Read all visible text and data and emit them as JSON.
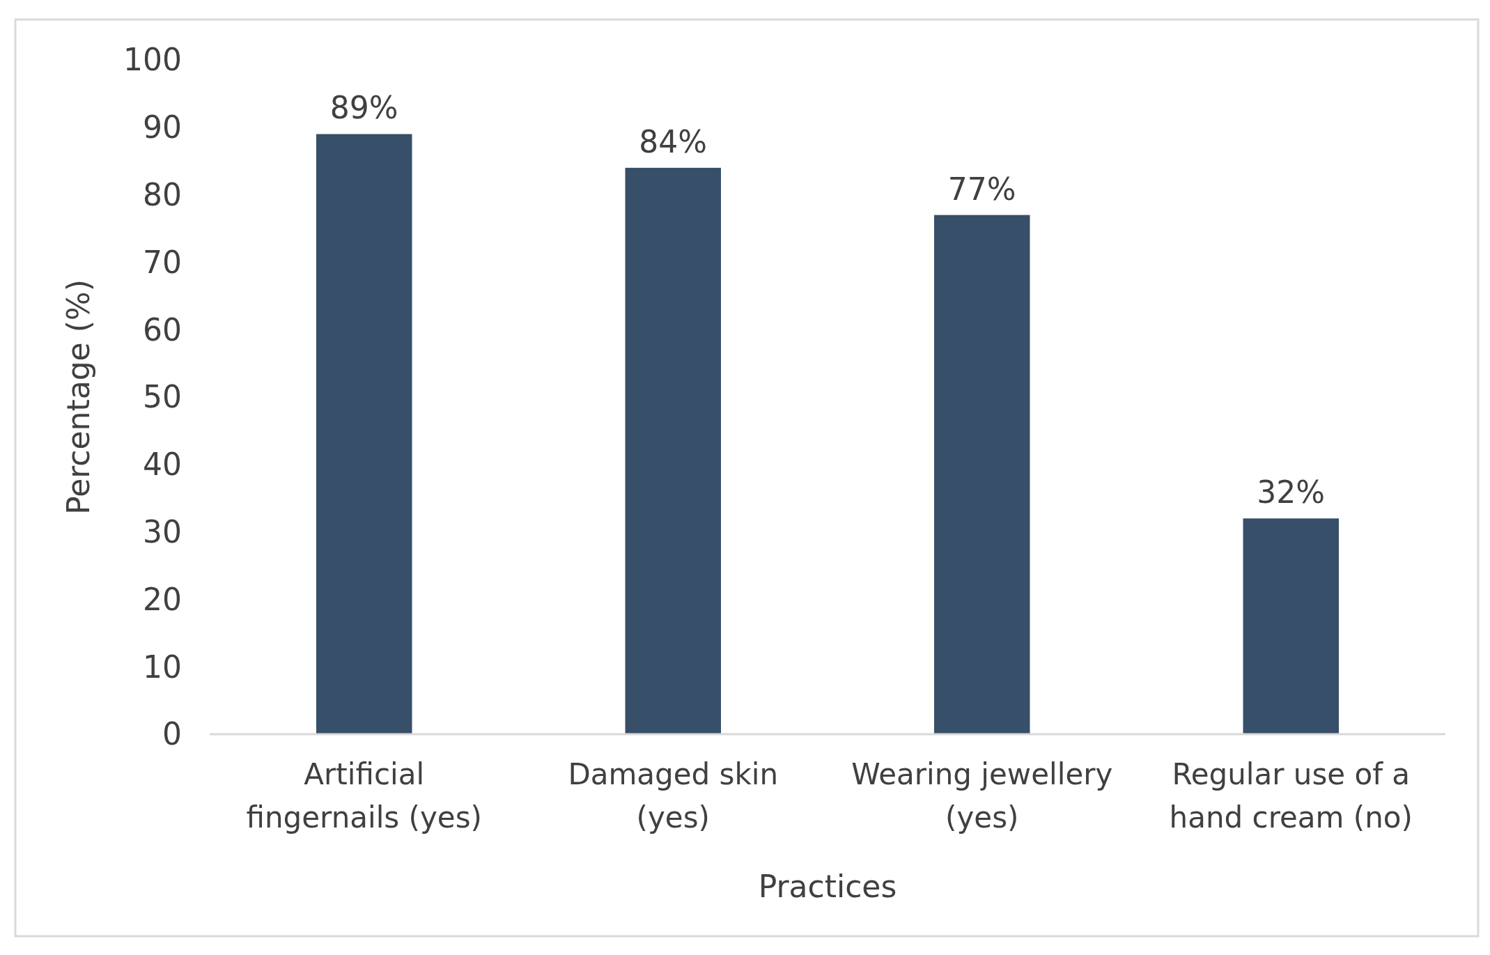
{
  "chart_data": {
    "type": "bar",
    "xlabel": "Practices",
    "ylabel": "Percentage (%)",
    "categories": [
      "Artificial fingernails (yes)",
      "Damaged skin (yes)",
      "Wearing jewellery (yes)",
      "Regular use of a hand cream (no)"
    ],
    "values": [
      89,
      84,
      77,
      32
    ],
    "value_labels": [
      "89%",
      "84%",
      "77%",
      "32%"
    ],
    "color": "#374f69",
    "ylim": [
      0,
      100
    ],
    "yticks": [
      0,
      10,
      20,
      30,
      40,
      50,
      60,
      70,
      80,
      90,
      100
    ],
    "grid": false
  }
}
